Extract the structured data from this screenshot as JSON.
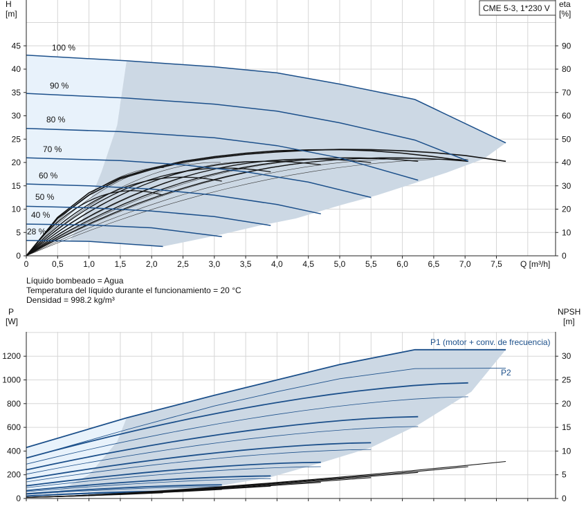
{
  "title_box": "CME 5-3, 1*230 V",
  "top_chart": {
    "y_left_label": [
      "H",
      "[m]"
    ],
    "y_right_label": [
      "eta",
      "[%]"
    ],
    "x_label": "Q [m³/h]",
    "x_ticks": [
      "0",
      "0,5",
      "1,0",
      "1,5",
      "2,0",
      "2,5",
      "3,0",
      "3,5",
      "4,0",
      "4,5",
      "5,0",
      "5,5",
      "6,0",
      "6,5",
      "7,0",
      "7,5"
    ],
    "y_left_ticks": [
      "0",
      "5",
      "10",
      "15",
      "20",
      "25",
      "30",
      "35",
      "40",
      "45"
    ],
    "y_right_ticks": [
      "0",
      "10",
      "20",
      "30",
      "40",
      "50",
      "60",
      "70",
      "80",
      "90"
    ],
    "speed_labels": [
      "100 %",
      "90 %",
      "80 %",
      "70 %",
      "60 %",
      "50 %",
      "40 %",
      "28 %"
    ]
  },
  "info_lines": [
    "Líquido bombeado = Agua",
    "Temperatura del líquido durante el funcionamiento = 20 °C",
    "Densidad = 998.2 kg/m³"
  ],
  "bottom_chart": {
    "y_left_label": [
      "P",
      "[W]"
    ],
    "y_right_label": [
      "NPSH",
      "[m]"
    ],
    "y_left_ticks": [
      "0",
      "200",
      "400",
      "600",
      "800",
      "1000",
      "1200"
    ],
    "y_right_ticks": [
      "0",
      "5",
      "10",
      "15",
      "20",
      "25",
      "30"
    ],
    "legend_p1": "P1 (motor + conv. de frecuencia)",
    "legend_p2": "P2"
  },
  "chart_data": [
    {
      "type": "line",
      "xlabel": "Q [m³/h]",
      "ylabel": "H [m]",
      "y2label": "eta [%]",
      "xlim": [
        0,
        8
      ],
      "ylim": [
        0,
        50
      ],
      "y2lim": [
        0,
        100
      ],
      "grid": true,
      "series": [
        {
          "name": "100 %",
          "x": [
            0,
            1.6,
            3.0,
            4.0,
            5.0,
            6.2,
            7.65
          ],
          "y": [
            43,
            41.8,
            40.5,
            39.2,
            36.8,
            33.5,
            24.2
          ]
        },
        {
          "name": "90 %",
          "x": [
            0,
            1.6,
            3.0,
            4.0,
            5.0,
            6.2,
            7.05
          ],
          "y": [
            34.8,
            33.8,
            32.5,
            31.0,
            28.5,
            24.8,
            20.3
          ]
        },
        {
          "name": "80 %",
          "x": [
            0,
            1.5,
            3.0,
            4.0,
            5.0,
            6.25
          ],
          "y": [
            27.3,
            26.6,
            25.3,
            23.6,
            21.0,
            16.2
          ]
        },
        {
          "name": "70 %",
          "x": [
            0,
            1.5,
            2.5,
            3.5,
            4.5,
            5.5
          ],
          "y": [
            21.0,
            20.4,
            19.5,
            18.0,
            15.8,
            12.5
          ]
        },
        {
          "name": "60 %",
          "x": [
            0,
            1.0,
            2.0,
            3.0,
            4.0,
            4.7
          ],
          "y": [
            15.4,
            15.0,
            14.3,
            13.0,
            11.0,
            9.0
          ]
        },
        {
          "name": "50 %",
          "x": [
            0,
            1.0,
            2.0,
            3.0,
            3.9
          ],
          "y": [
            10.6,
            10.3,
            9.6,
            8.4,
            6.5
          ]
        },
        {
          "name": "40 %",
          "x": [
            0,
            1.0,
            2.0,
            3.12
          ],
          "y": [
            6.8,
            6.6,
            6.0,
            4.1
          ]
        },
        {
          "name": "28 %",
          "x": [
            0,
            1.0,
            2.18
          ],
          "y": [
            3.3,
            3.1,
            2.0
          ]
        }
      ],
      "efficiency_series": [
        {
          "x": [
            0,
            0.5,
            1.0,
            1.5,
            2.0,
            2.5,
            3.0,
            3.5,
            4.0,
            4.5,
            5.0,
            5.5,
            6.0,
            6.5,
            7.0,
            7.65
          ],
          "y": [
            0,
            16,
            26,
            33,
            37,
            40,
            42,
            43.5,
            44.5,
            45.2,
            45.6,
            45.5,
            45.0,
            44.2,
            43.0,
            40.5
          ]
        },
        {
          "x": [
            0,
            0.5,
            1.0,
            1.5,
            2.0,
            2.5,
            3.0,
            3.5,
            4.0,
            4.5,
            5.0,
            5.5,
            6.0,
            6.5,
            7.05
          ],
          "y": [
            0,
            16.5,
            27,
            33.5,
            37.5,
            40.5,
            42.5,
            44,
            45,
            45.4,
            45.5,
            45,
            44,
            42.5,
            40.5
          ]
        }
      ]
    },
    {
      "type": "line",
      "ylabel": "P [W]",
      "y2label": "NPSH [m]",
      "xlim": [
        0,
        8
      ],
      "ylim": [
        0,
        1400
      ],
      "y2lim": [
        0,
        35
      ],
      "grid": true,
      "series": [
        {
          "name": "P1 (motor + conv. de frecuencia)",
          "x": [
            0,
            1.6,
            3.0,
            4.0,
            5.0,
            6.2,
            7.65
          ],
          "y": [
            430,
            680,
            870,
            1000,
            1130,
            1255,
            1255
          ]
        },
        {
          "name": "P2",
          "x": [
            0,
            1.6,
            3.0,
            4.0,
            5.0,
            6.2,
            7.65
          ],
          "y": [
            340,
            580,
            780,
            900,
            1010,
            1095,
            1100
          ]
        }
      ],
      "npsh": {
        "x": [
          0,
          1,
          2,
          3,
          4,
          5,
          6,
          7,
          7.65
        ],
        "y": [
          0.3,
          0.9,
          1.6,
          2.5,
          3.4,
          4.4,
          5.5,
          6.8,
          7.8
        ]
      }
    }
  ]
}
